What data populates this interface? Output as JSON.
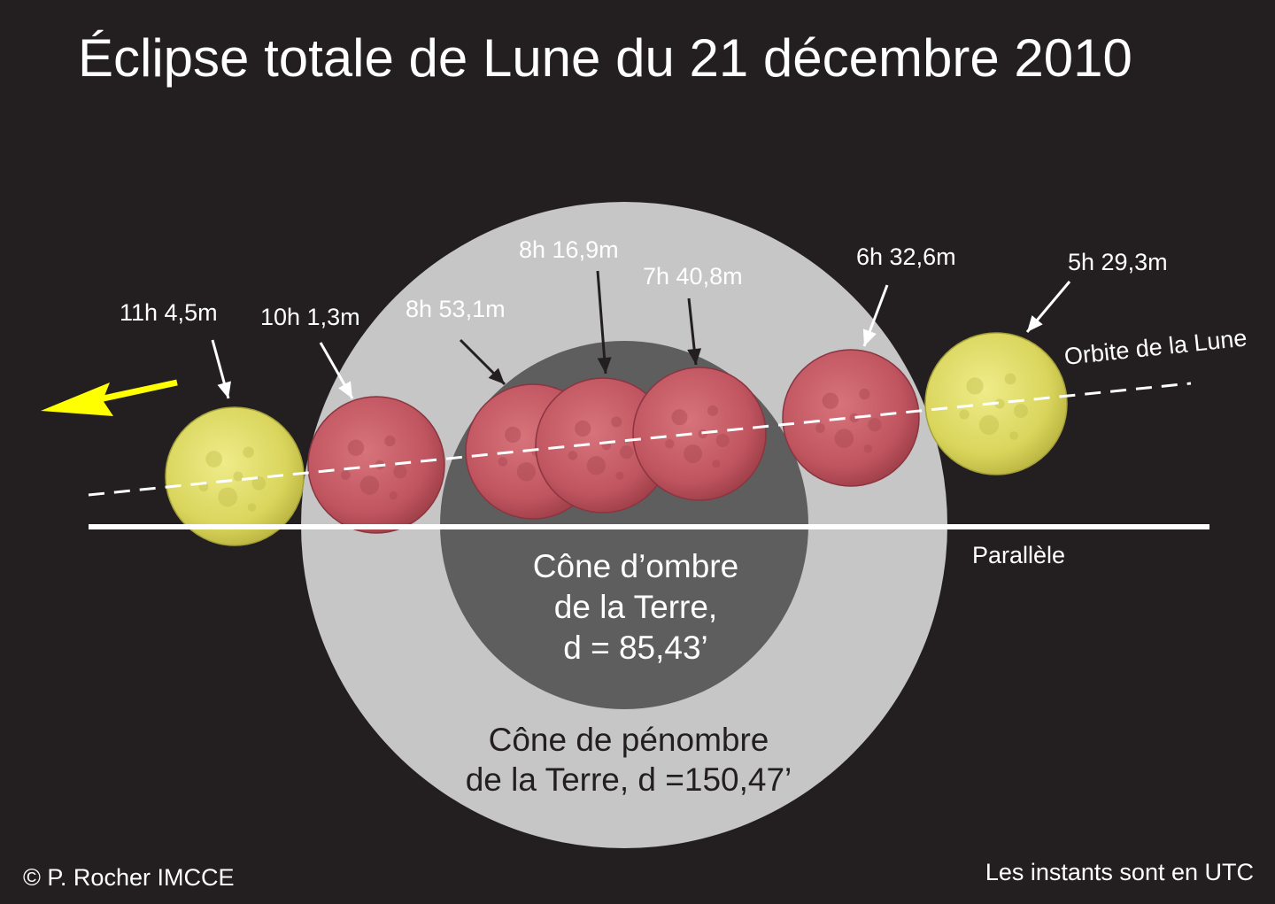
{
  "title": "Éclipse totale de Lune du 21 décembre 2010",
  "colors": {
    "background": "#231f20",
    "penumbra": "#c6c6c6",
    "umbra": "#5e5e5e",
    "moon_outside": "#e6e36a",
    "moon_in_shadow": "#c4555e",
    "arrow_direction": "#ffff00",
    "lines": "#ffffff"
  },
  "umbra_label": [
    "Cône d’ombre",
    "de la Terre,",
    "d = 85,43’"
  ],
  "penumbra_label": [
    "Cône de pénombre",
    "de la Terre, d =150,47’"
  ],
  "orbit_label": "Orbite de la Lune",
  "parallel_label": "Parallèle",
  "credit": "© P. Rocher IMCCE",
  "time_note": "Les instants sont en UTC",
  "moons": [
    {
      "time": "11h 4,5m",
      "phase": "penumbra"
    },
    {
      "time": "10h 1,3m",
      "phase": "umbra"
    },
    {
      "time": "8h 53,1m",
      "phase": "umbra"
    },
    {
      "time": "8h 16,9m",
      "phase": "umbra"
    },
    {
      "time": "7h 40,8m",
      "phase": "umbra"
    },
    {
      "time": "6h 32,6m",
      "phase": "umbra"
    },
    {
      "time": "5h 29,3m",
      "phase": "penumbra"
    }
  ]
}
